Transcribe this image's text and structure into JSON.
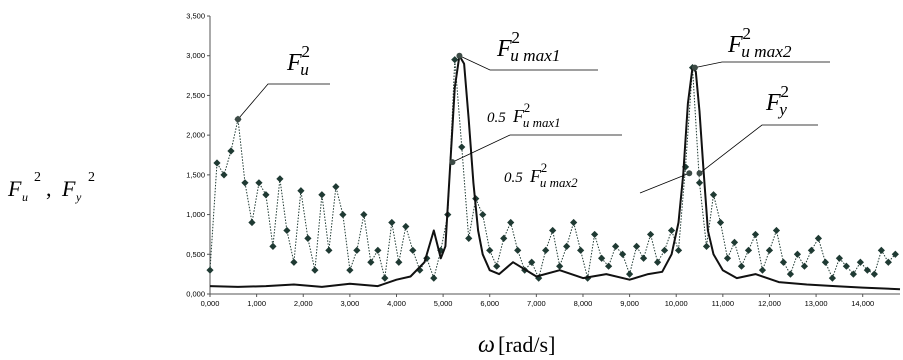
{
  "chart_data": {
    "type": "line",
    "xlabel_symbol": "ω",
    "xlabel_unit": "[rad/s]",
    "ylabel": {
      "base1": "F",
      "sub1": "u",
      "sup1": "2",
      "sep": ",",
      "base2": "F",
      "sub2": "y",
      "sup2": "2"
    },
    "xlim": [
      0,
      14.8
    ],
    "ylim": [
      0,
      3.5
    ],
    "x_ticks": [
      "0,000",
      "1,000",
      "2,000",
      "3,000",
      "4,000",
      "5,000",
      "6,000",
      "7,000",
      "8,000",
      "9,000",
      "10,000",
      "11,000",
      "12,000",
      "13,000",
      "14,000"
    ],
    "y_ticks": [
      "0,000",
      "0,500",
      "1,000",
      "1,500",
      "2,000",
      "2,500",
      "3,000",
      "3,500"
    ],
    "series": [
      {
        "name": "Fu²",
        "style": "dotted-diamond",
        "color": "#1f3a33",
        "x": [
          0.0,
          0.15,
          0.3,
          0.45,
          0.6,
          0.75,
          0.9,
          1.05,
          1.2,
          1.35,
          1.5,
          1.65,
          1.8,
          1.95,
          2.1,
          2.25,
          2.4,
          2.55,
          2.7,
          2.85,
          3.0,
          3.15,
          3.3,
          3.45,
          3.6,
          3.75,
          3.9,
          4.05,
          4.2,
          4.35,
          4.5,
          4.65,
          4.8,
          4.95,
          5.1,
          5.25,
          5.4,
          5.55,
          5.7,
          5.85,
          6.0,
          6.15,
          6.3,
          6.45,
          6.6,
          6.75,
          6.9,
          7.05,
          7.2,
          7.35,
          7.5,
          7.65,
          7.8,
          7.95,
          8.1,
          8.25,
          8.4,
          8.55,
          8.7,
          8.85,
          9.0,
          9.15,
          9.3,
          9.45,
          9.6,
          9.75,
          9.9,
          10.05,
          10.2,
          10.35,
          10.5,
          10.65,
          10.8,
          10.95,
          11.1,
          11.25,
          11.4,
          11.55,
          11.7,
          11.85,
          12.0,
          12.15,
          12.3,
          12.45,
          12.6,
          12.75,
          12.9,
          13.05,
          13.2,
          13.35,
          13.5,
          13.65,
          13.8,
          13.95,
          14.1,
          14.25,
          14.4,
          14.55,
          14.7
        ],
        "values": [
          0.3,
          1.65,
          1.5,
          1.8,
          2.2,
          1.4,
          0.9,
          1.4,
          1.25,
          0.6,
          1.45,
          0.8,
          0.4,
          1.3,
          0.7,
          0.3,
          1.25,
          0.55,
          1.35,
          1.0,
          0.3,
          0.55,
          1.0,
          0.4,
          0.55,
          0.2,
          0.9,
          0.4,
          0.85,
          0.55,
          0.3,
          0.45,
          0.2,
          0.55,
          1.0,
          2.95,
          1.85,
          0.7,
          1.2,
          1.0,
          0.55,
          0.35,
          0.7,
          0.9,
          0.55,
          0.3,
          0.4,
          0.2,
          0.55,
          0.8,
          0.35,
          0.6,
          0.9,
          0.55,
          0.2,
          0.75,
          0.45,
          0.35,
          0.6,
          0.5,
          0.25,
          0.6,
          0.45,
          0.75,
          0.4,
          0.55,
          0.8,
          0.55,
          1.6,
          2.85,
          1.4,
          0.6,
          1.25,
          0.9,
          0.45,
          0.65,
          0.35,
          0.55,
          0.75,
          0.3,
          0.55,
          0.8,
          0.4,
          0.25,
          0.5,
          0.35,
          0.55,
          0.7,
          0.4,
          0.2,
          0.45,
          0.35,
          0.25,
          0.4,
          0.3,
          0.25,
          0.55,
          0.4,
          0.5
        ]
      },
      {
        "name": "Fy²",
        "style": "solid",
        "color": "#111111",
        "x": [
          0.0,
          0.6,
          1.2,
          1.8,
          2.4,
          3.0,
          3.6,
          4.0,
          4.3,
          4.6,
          4.8,
          4.95,
          5.05,
          5.15,
          5.25,
          5.35,
          5.45,
          5.55,
          5.65,
          5.75,
          5.85,
          6.0,
          6.2,
          6.5,
          7.0,
          7.5,
          8.0,
          8.5,
          9.0,
          9.4,
          9.7,
          9.9,
          10.05,
          10.15,
          10.25,
          10.35,
          10.42,
          10.5,
          10.58,
          10.68,
          10.8,
          11.0,
          11.3,
          11.7,
          12.2,
          12.8,
          13.4,
          14.0,
          14.8
        ],
        "values": [
          0.1,
          0.09,
          0.1,
          0.12,
          0.09,
          0.13,
          0.1,
          0.18,
          0.22,
          0.4,
          0.8,
          0.45,
          0.6,
          1.6,
          2.6,
          3.0,
          2.9,
          2.2,
          1.4,
          0.8,
          0.5,
          0.3,
          0.25,
          0.4,
          0.22,
          0.3,
          0.2,
          0.25,
          0.18,
          0.25,
          0.28,
          0.5,
          0.9,
          1.5,
          2.4,
          2.85,
          2.8,
          2.3,
          1.6,
          0.8,
          0.5,
          0.3,
          0.2,
          0.25,
          0.15,
          0.12,
          0.1,
          0.08,
          0.06
        ]
      }
    ],
    "annotations": [
      {
        "id": "fu",
        "base": "F",
        "sub": "u",
        "sup": "2",
        "coef": "",
        "target": [
          0.6,
          2.2
        ]
      },
      {
        "id": "fumax1",
        "base": "F",
        "sub": "u max1",
        "sup": "2",
        "coef": "",
        "target": [
          5.35,
          3.0
        ]
      },
      {
        "id": "half1",
        "base": "F",
        "sub": "u max1",
        "sup": "2",
        "coef": "0.5",
        "target": [
          5.2,
          1.66
        ]
      },
      {
        "id": "fumax2",
        "base": "F",
        "sub": "u max2",
        "sup": "2",
        "coef": "",
        "target": [
          10.4,
          2.85
        ]
      },
      {
        "id": "fy",
        "base": "F",
        "sub": "y",
        "sup": "2",
        "coef": "",
        "target": [
          10.5,
          1.52
        ]
      },
      {
        "id": "half2",
        "base": "F",
        "sub": "u max2",
        "sup": "2",
        "coef": "0.5",
        "target": [
          10.28,
          1.52
        ]
      }
    ]
  }
}
